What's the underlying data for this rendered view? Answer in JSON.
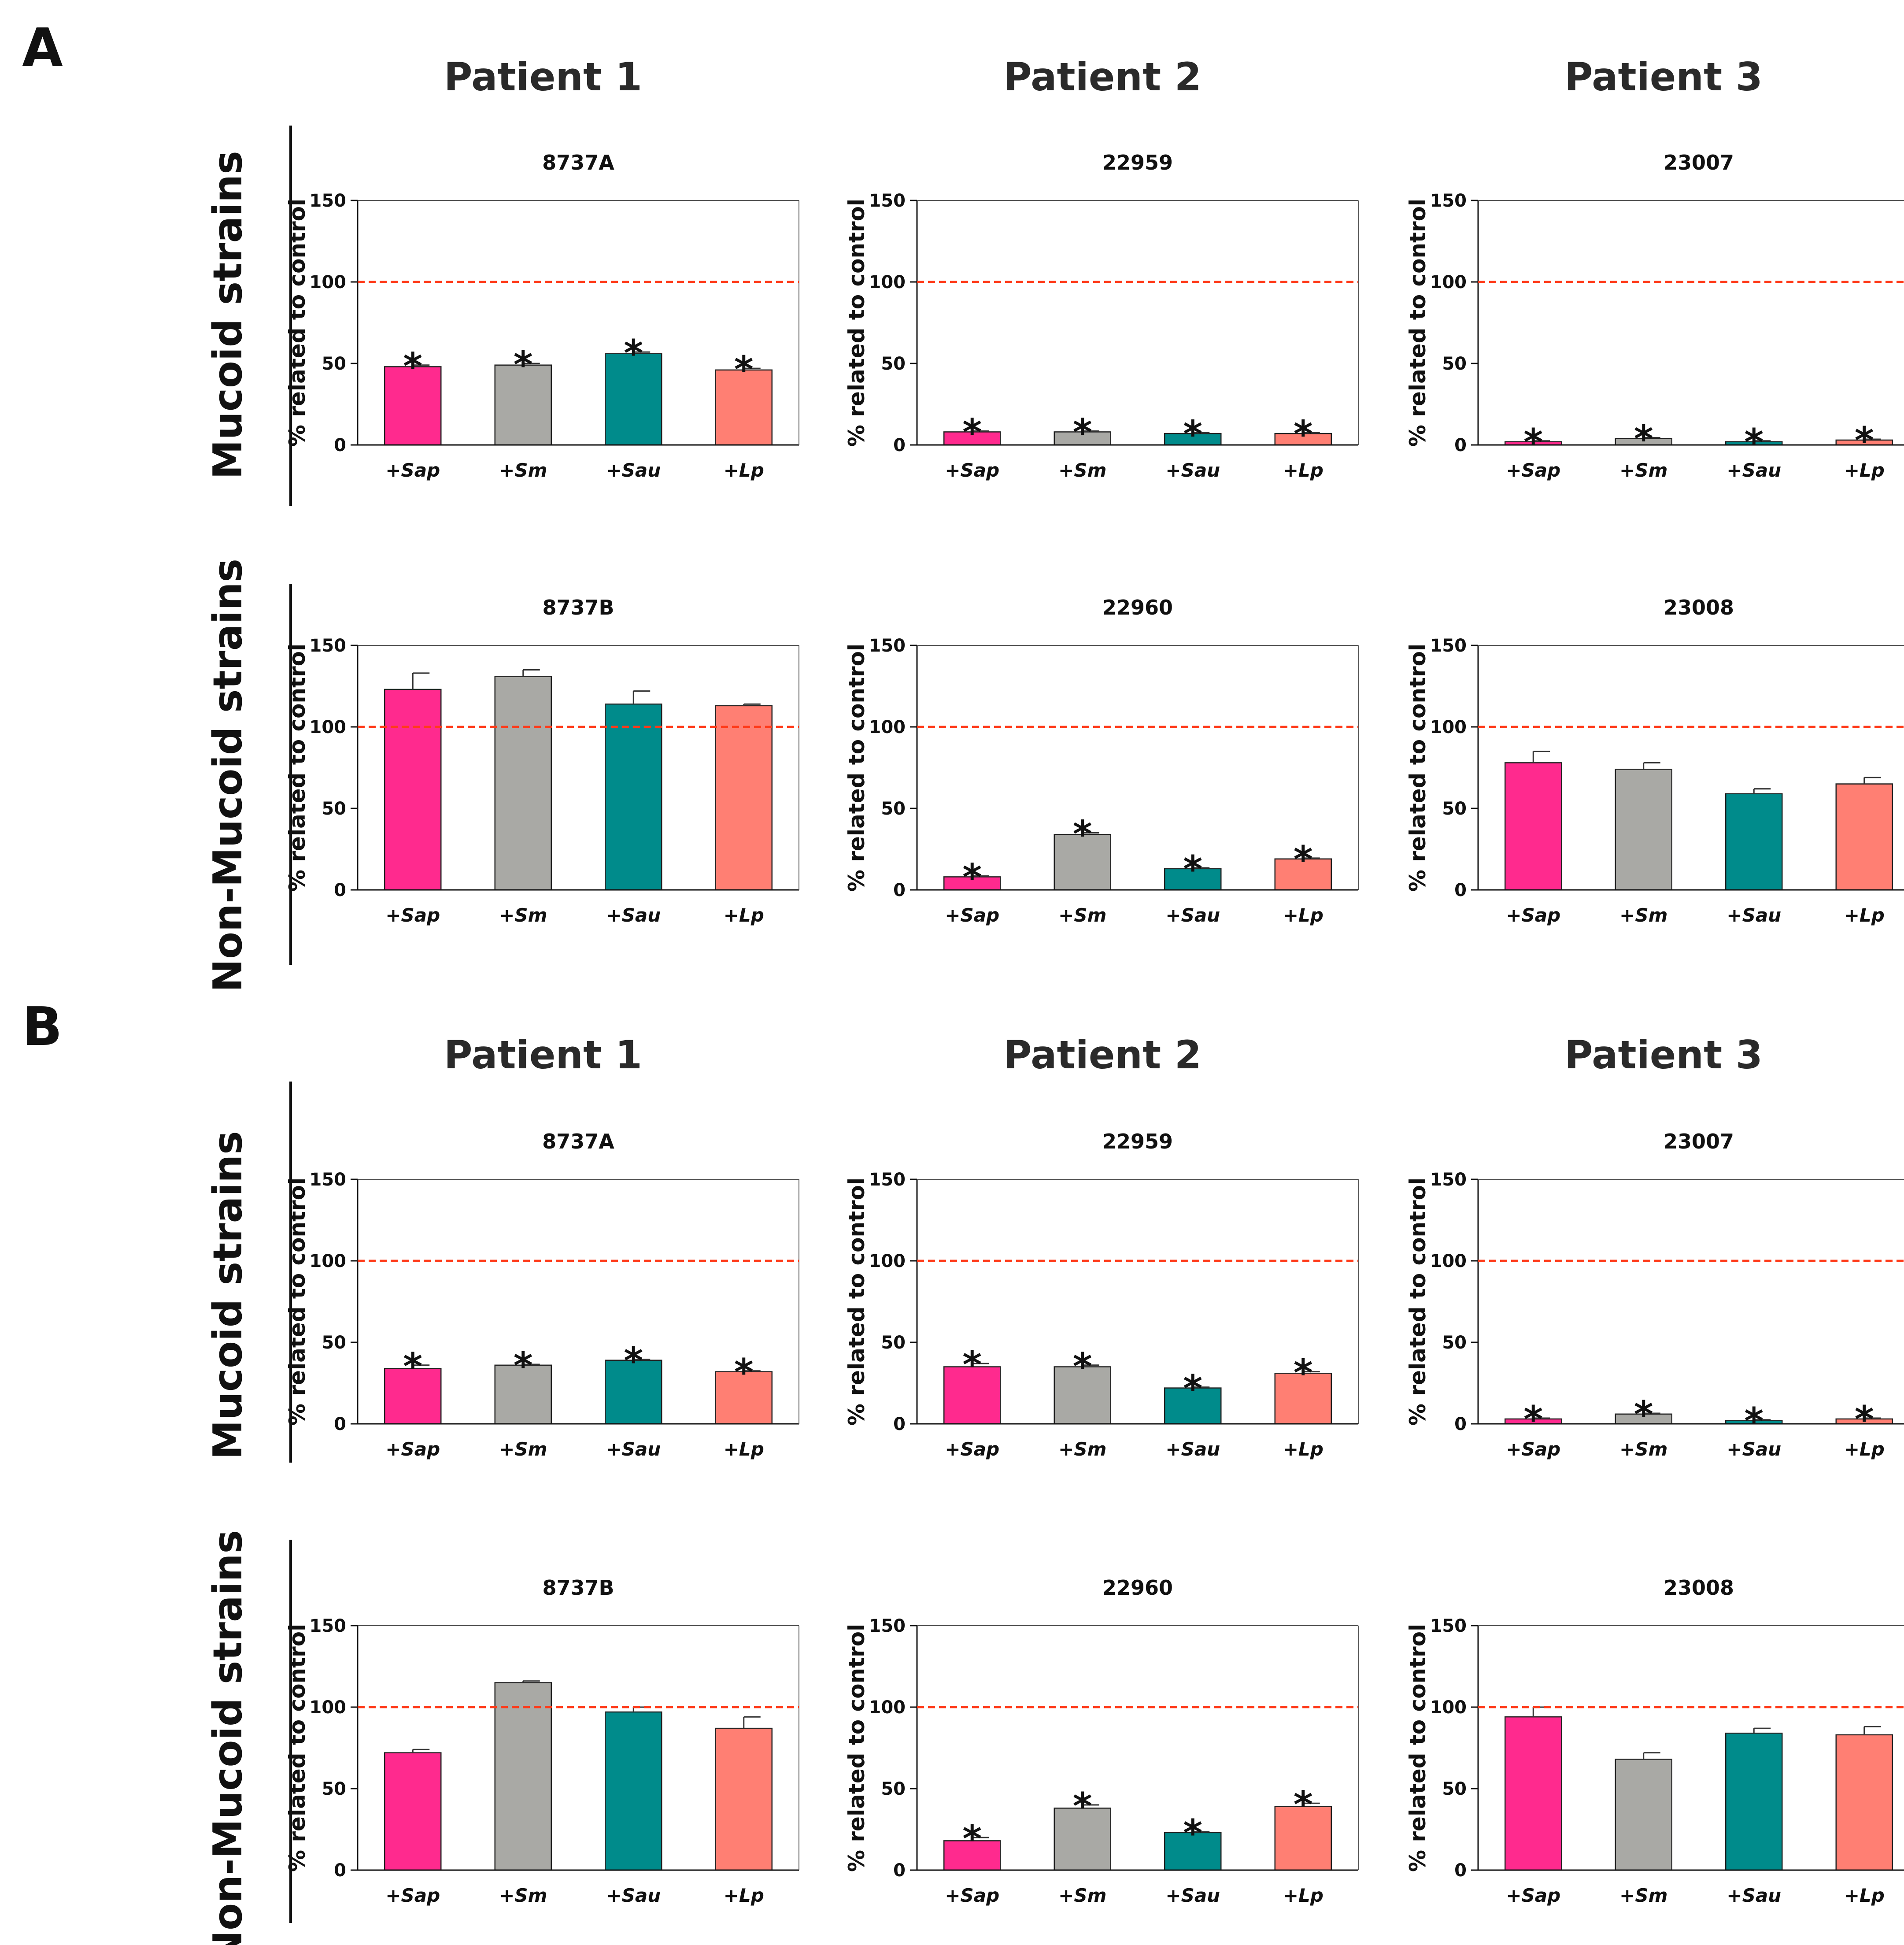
{
  "figure": {
    "panel_labels": [
      "A",
      "B"
    ],
    "patients": [
      "Patient 1",
      "Patient 2",
      "Patient 3"
    ],
    "row_labels": [
      "Mucoid strains",
      "Non-Mucoid strains"
    ]
  },
  "colors": {
    "bars": [
      "#ff2a8e",
      "#a9a9a5",
      "#008b8b",
      "#ff7f73"
    ],
    "control_line": "#ff3b1a",
    "axis": "#111111",
    "text": "#222222"
  },
  "chart_data": [
    {
      "id": "A-mucoid-p1",
      "panel": "A",
      "strain_type": "Mucoid strains",
      "patient": "Patient 1",
      "type": "bar",
      "title": "8737A",
      "ylabel": "% related to control",
      "categories": [
        "+Sap",
        "+Sm",
        "+Sau",
        "+Lp"
      ],
      "values": [
        48,
        49,
        56,
        46
      ],
      "errors": [
        1,
        1,
        1,
        1
      ],
      "significant": [
        true,
        true,
        true,
        true
      ],
      "reference_line": 100,
      "ylim": [
        0,
        150
      ],
      "yticks": [
        0,
        50,
        100,
        150
      ]
    },
    {
      "id": "A-mucoid-p2",
      "panel": "A",
      "strain_type": "Mucoid strains",
      "patient": "Patient 2",
      "type": "bar",
      "title": "22959",
      "ylabel": "% related to control",
      "categories": [
        "+Sap",
        "+Sm",
        "+Sau",
        "+Lp"
      ],
      "values": [
        8,
        8,
        7,
        7
      ],
      "errors": [
        0.5,
        0.5,
        0.5,
        0.5
      ],
      "significant": [
        true,
        true,
        true,
        true
      ],
      "reference_line": 100,
      "ylim": [
        0,
        150
      ],
      "yticks": [
        0,
        50,
        100,
        150
      ]
    },
    {
      "id": "A-mucoid-p3",
      "panel": "A",
      "strain_type": "Mucoid strains",
      "patient": "Patient 3",
      "type": "bar",
      "title": "23007",
      "ylabel": "% related to control",
      "categories": [
        "+Sap",
        "+Sm",
        "+Sau",
        "+Lp"
      ],
      "values": [
        2,
        4,
        2,
        3
      ],
      "errors": [
        0.5,
        0.5,
        0.5,
        0.5
      ],
      "significant": [
        true,
        true,
        true,
        true
      ],
      "reference_line": 100,
      "ylim": [
        0,
        150
      ],
      "yticks": [
        0,
        50,
        100,
        150
      ]
    },
    {
      "id": "A-nonmucoid-p1",
      "panel": "A",
      "strain_type": "Non-Mucoid strains",
      "patient": "Patient 1",
      "type": "bar",
      "title": "8737B",
      "ylabel": "% related to control",
      "categories": [
        "+Sap",
        "+Sm",
        "+Sau",
        "+Lp"
      ],
      "values": [
        123,
        131,
        114,
        113
      ],
      "errors": [
        10,
        4,
        8,
        1
      ],
      "significant": [
        false,
        false,
        false,
        false
      ],
      "reference_line": 100,
      "ylim": [
        0,
        150
      ],
      "yticks": [
        0,
        50,
        100,
        150
      ]
    },
    {
      "id": "A-nonmucoid-p2",
      "panel": "A",
      "strain_type": "Non-Mucoid strains",
      "patient": "Patient 2",
      "type": "bar",
      "title": "22960",
      "ylabel": "% related to control",
      "categories": [
        "+Sap",
        "+Sm",
        "+Sau",
        "+Lp"
      ],
      "values": [
        8,
        34,
        13,
        19
      ],
      "errors": [
        0.5,
        1,
        0.5,
        0.5
      ],
      "significant": [
        true,
        true,
        true,
        true
      ],
      "reference_line": 100,
      "ylim": [
        0,
        150
      ],
      "yticks": [
        0,
        50,
        100,
        150
      ]
    },
    {
      "id": "A-nonmucoid-p3",
      "panel": "A",
      "strain_type": "Non-Mucoid strains",
      "patient": "Patient 3",
      "type": "bar",
      "title": "23008",
      "ylabel": "% related to control",
      "categories": [
        "+Sap",
        "+Sm",
        "+Sau",
        "+Lp"
      ],
      "values": [
        78,
        74,
        59,
        65
      ],
      "errors": [
        7,
        4,
        3,
        4
      ],
      "significant": [
        false,
        false,
        false,
        false
      ],
      "reference_line": 100,
      "ylim": [
        0,
        150
      ],
      "yticks": [
        0,
        50,
        100,
        150
      ]
    },
    {
      "id": "B-mucoid-p1",
      "panel": "B",
      "strain_type": "Mucoid strains",
      "patient": "Patient 1",
      "type": "bar",
      "title": "8737A",
      "ylabel": "% related to control",
      "categories": [
        "+Sap",
        "+Sm",
        "+Sau",
        "+Lp"
      ],
      "values": [
        34,
        36,
        39,
        32
      ],
      "errors": [
        2,
        0.5,
        0.5,
        0.5
      ],
      "significant": [
        true,
        true,
        true,
        true
      ],
      "reference_line": 100,
      "ylim": [
        0,
        150
      ],
      "yticks": [
        0,
        50,
        100,
        150
      ]
    },
    {
      "id": "B-mucoid-p2",
      "panel": "B",
      "strain_type": "Mucoid strains",
      "patient": "Patient 2",
      "type": "bar",
      "title": "22959",
      "ylabel": "% related to control",
      "categories": [
        "+Sap",
        "+Sm",
        "+Sau",
        "+Lp"
      ],
      "values": [
        35,
        35,
        22,
        31
      ],
      "errors": [
        2,
        1,
        0.5,
        1
      ],
      "significant": [
        true,
        true,
        true,
        true
      ],
      "reference_line": 100,
      "ylim": [
        0,
        150
      ],
      "yticks": [
        0,
        50,
        100,
        150
      ]
    },
    {
      "id": "B-mucoid-p3",
      "panel": "B",
      "strain_type": "Mucoid strains",
      "patient": "Patient 3",
      "type": "bar",
      "title": "23007",
      "ylabel": "% related to control",
      "categories": [
        "+Sap",
        "+Sm",
        "+Sau",
        "+Lp"
      ],
      "values": [
        3,
        6,
        2,
        3
      ],
      "errors": [
        0.5,
        0.5,
        0.5,
        0.5
      ],
      "significant": [
        true,
        true,
        true,
        true
      ],
      "reference_line": 100,
      "ylim": [
        0,
        150
      ],
      "yticks": [
        0,
        50,
        100,
        150
      ]
    },
    {
      "id": "B-nonmucoid-p1",
      "panel": "B",
      "strain_type": "Non-Mucoid strains",
      "patient": "Patient 1",
      "type": "bar",
      "title": "8737B",
      "ylabel": "% related to control",
      "categories": [
        "+Sap",
        "+Sm",
        "+Sau",
        "+Lp"
      ],
      "values": [
        72,
        115,
        97,
        87
      ],
      "errors": [
        2,
        1,
        3,
        7
      ],
      "significant": [
        false,
        false,
        false,
        false
      ],
      "reference_line": 100,
      "ylim": [
        0,
        150
      ],
      "yticks": [
        0,
        50,
        100,
        150
      ]
    },
    {
      "id": "B-nonmucoid-p2",
      "panel": "B",
      "strain_type": "Non-Mucoid strains",
      "patient": "Patient 2",
      "type": "bar",
      "title": "22960",
      "ylabel": "% related to control",
      "categories": [
        "+Sap",
        "+Sm",
        "+Sau",
        "+Lp"
      ],
      "values": [
        18,
        38,
        23,
        39
      ],
      "errors": [
        2,
        2,
        0.5,
        2
      ],
      "significant": [
        true,
        true,
        true,
        true
      ],
      "reference_line": 100,
      "ylim": [
        0,
        150
      ],
      "yticks": [
        0,
        50,
        100,
        150
      ]
    },
    {
      "id": "B-nonmucoid-p3",
      "panel": "B",
      "strain_type": "Non-Mucoid strains",
      "patient": "Patient 3",
      "type": "bar",
      "title": "23008",
      "ylabel": "% related to control",
      "categories": [
        "+Sap",
        "+Sm",
        "+Sau",
        "+Lp"
      ],
      "values": [
        94,
        68,
        84,
        83
      ],
      "errors": [
        6,
        4,
        3,
        5
      ],
      "significant": [
        false,
        false,
        false,
        false
      ],
      "reference_line": 100,
      "ylim": [
        0,
        150
      ],
      "yticks": [
        0,
        50,
        100,
        150
      ]
    }
  ]
}
